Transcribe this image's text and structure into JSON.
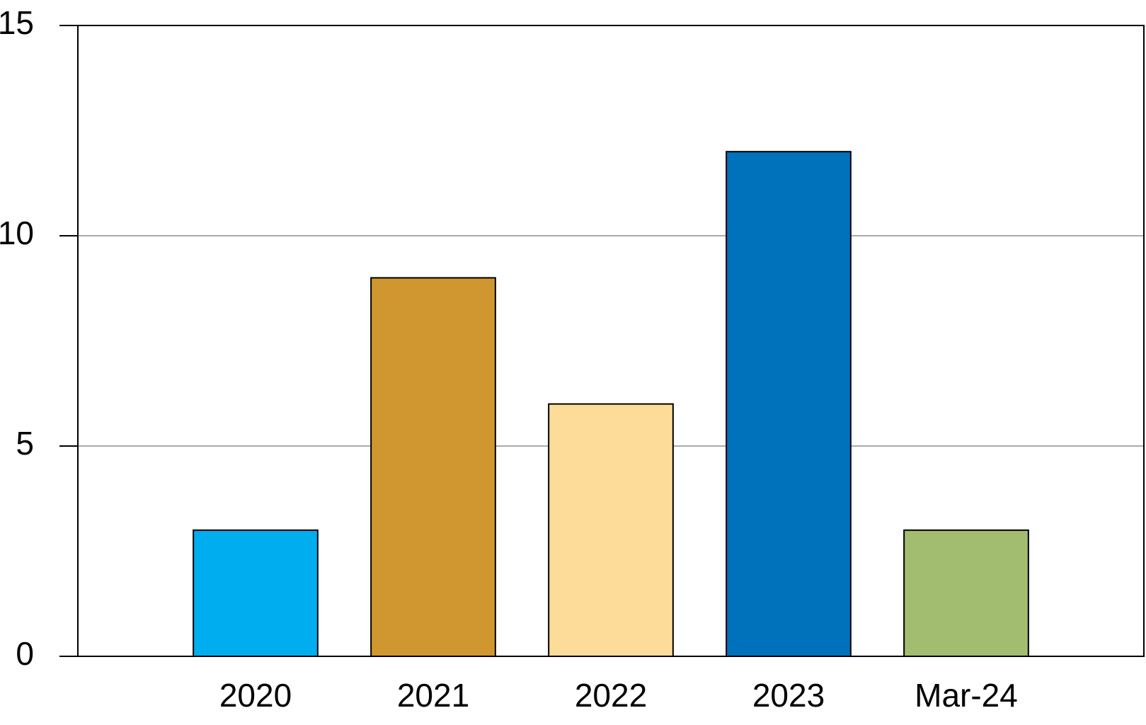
{
  "chart_data": {
    "type": "bar",
    "categories": [
      "2020",
      "2021",
      "2022",
      "2023",
      "Mar-24"
    ],
    "values": [
      3,
      9,
      6,
      12,
      3
    ],
    "colors": [
      "#00adef",
      "#d0962f",
      "#fddb98",
      "#0072bc",
      "#a2bd6f"
    ],
    "ylim": [
      0,
      15
    ],
    "yticks": [
      0,
      5,
      10,
      15
    ],
    "grid": true
  }
}
